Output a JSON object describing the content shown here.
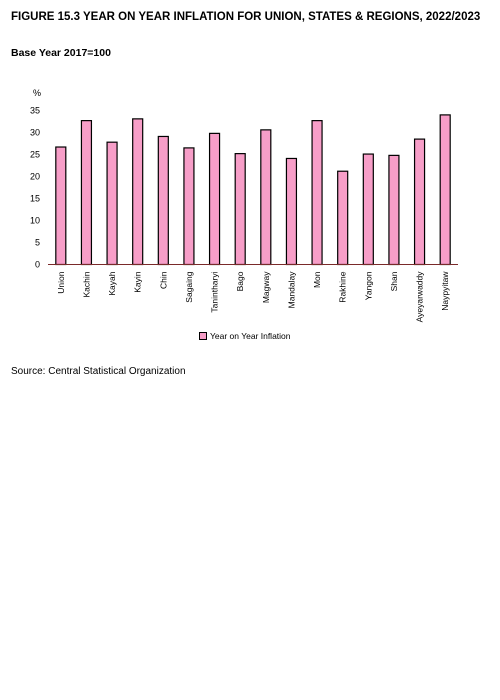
{
  "header": {
    "figure_number": "FIGURE 15.3",
    "title": "YEAR ON YEAR INFLATION FOR UNION, STATES & REGIONS, 2022/2023",
    "base_year": "Base Year 2017=100"
  },
  "source": "Source: Central Statistical Organization",
  "colors": {
    "bar": "#f79ec8",
    "bar_stroke": "#000000",
    "axis": "#7a2a2a"
  },
  "chart_data": {
    "type": "bar",
    "title": "",
    "ylabel": "%",
    "xlabel": "",
    "ylim": [
      0,
      35
    ],
    "yticks": [
      0,
      5,
      10,
      15,
      20,
      25,
      30,
      35
    ],
    "grid": false,
    "legend": "bottom",
    "categories": [
      "Union",
      "Kachin",
      "Kayah",
      "Kayin",
      "Chin",
      "Sagaing",
      "Tanintharyi",
      "Bago",
      "Magway",
      "Mandalay",
      "Mon",
      "Rakhine",
      "Yangon",
      "Shan",
      "Ayeyarwaddy",
      "Naypyitaw"
    ],
    "series": [
      {
        "name": "Year on Year Inflation",
        "values": [
          26.7,
          32.7,
          27.8,
          33.1,
          29.1,
          26.5,
          29.8,
          25.2,
          30.6,
          24.1,
          32.7,
          21.2,
          25.1,
          24.8,
          28.5,
          34.0
        ]
      }
    ]
  }
}
